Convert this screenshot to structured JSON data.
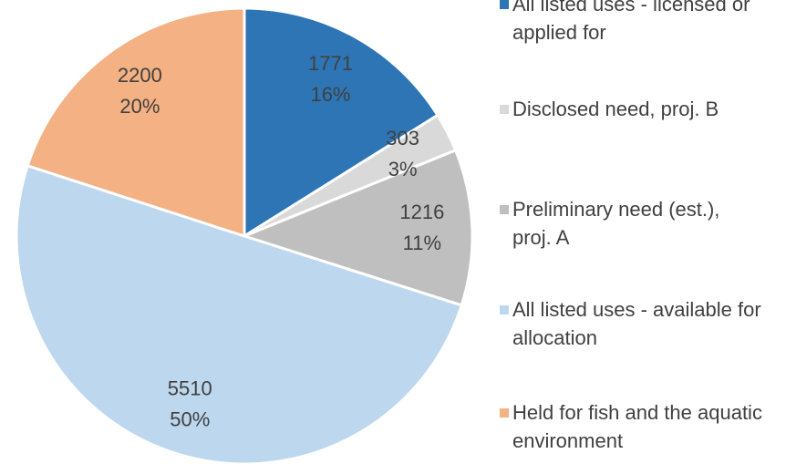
{
  "chart_data": {
    "type": "pie",
    "categories": [
      "All listed uses - licensed or applied for",
      "Disclosed need, proj. B",
      "Preliminary need (est.), proj. A",
      "All listed uses - available for allocation",
      "Held for fish and the aquatic environment"
    ],
    "values": [
      1771,
      303,
      1216,
      5510,
      2200
    ],
    "percent_labels": [
      "16%",
      "3%",
      "11%",
      "50%",
      "20%"
    ],
    "colors": [
      "#2e75b6",
      "#d9d9d9",
      "#bfbfbf",
      "#bdd7ee",
      "#f4b183"
    ],
    "legend": "right"
  }
}
